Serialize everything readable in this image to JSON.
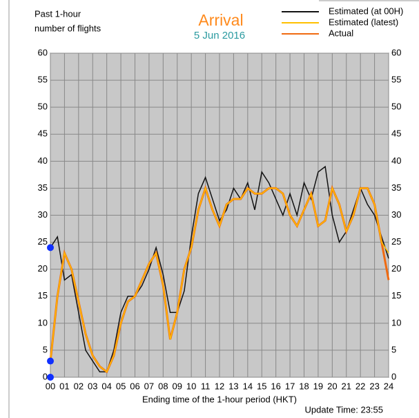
{
  "chart_data": {
    "type": "line",
    "title": "Arrival",
    "subtitle": "5 Jun 2016",
    "y_label": [
      "Past 1-hour",
      "number of flights"
    ],
    "x_label": "Ending time of the 1-hour period (HKT)",
    "update_time": "Update Time: 23:55",
    "xlim": [
      0,
      24
    ],
    "ylim": [
      0,
      60
    ],
    "yticks": [
      0,
      5,
      10,
      15,
      20,
      25,
      30,
      35,
      40,
      45,
      50,
      55,
      60
    ],
    "xticks": [
      {
        "value": 0,
        "label": "00"
      },
      {
        "value": 1,
        "label": "01"
      },
      {
        "value": 2,
        "label": "02"
      },
      {
        "value": 3,
        "label": "03"
      },
      {
        "value": 4,
        "label": "04"
      },
      {
        "value": 5,
        "label": "05"
      },
      {
        "value": 6,
        "label": "06"
      },
      {
        "value": 7,
        "label": "07"
      },
      {
        "value": 8,
        "label": "08"
      },
      {
        "value": 9,
        "label": "09"
      },
      {
        "value": 10,
        "label": "10"
      },
      {
        "value": 11,
        "label": "11"
      },
      {
        "value": 12,
        "label": "12"
      },
      {
        "value": 13,
        "label": "13"
      },
      {
        "value": 14,
        "label": "14"
      },
      {
        "value": 15,
        "label": "15"
      },
      {
        "value": 16,
        "label": "16"
      },
      {
        "value": 17,
        "label": "17"
      },
      {
        "value": 18,
        "label": "18"
      },
      {
        "value": 19,
        "label": "19"
      },
      {
        "value": 20,
        "label": "20"
      },
      {
        "value": 21,
        "label": "21"
      },
      {
        "value": 22,
        "label": "22"
      },
      {
        "value": 23,
        "label": "23"
      },
      {
        "value": 24,
        "label": "24"
      }
    ],
    "grid": true,
    "x": [
      0,
      0.5,
      1,
      1.5,
      2,
      2.5,
      3,
      3.5,
      4,
      4.5,
      5,
      5.5,
      6,
      6.5,
      7,
      7.5,
      8,
      8.5,
      9,
      9.5,
      10,
      10.5,
      11,
      11.5,
      12,
      12.5,
      13,
      13.5,
      14,
      14.5,
      15,
      15.5,
      16,
      16.5,
      17,
      17.5,
      18,
      18.5,
      19,
      19.5,
      20,
      20.5,
      21,
      21.5,
      22,
      22.5,
      23,
      23.5,
      24
    ],
    "series": [
      {
        "name": "Estimated (at 00H)",
        "color": "#111111",
        "width": 1.5,
        "values": [
          24,
          26,
          18,
          19,
          12,
          5,
          3,
          1,
          1,
          5,
          12,
          15,
          15,
          17,
          20,
          24,
          19,
          12,
          12,
          16,
          26,
          34,
          37,
          33,
          29,
          31,
          35,
          33,
          36,
          31,
          38,
          36,
          33,
          30,
          34,
          30,
          36,
          33,
          38,
          39,
          30,
          25,
          27,
          31,
          35,
          32,
          30,
          26,
          22
        ]
      },
      {
        "name": "Estimated (latest)",
        "color": "#ffc000",
        "width": 1.5,
        "values": [
          3,
          15,
          23,
          20,
          14,
          8,
          4,
          2,
          1,
          4,
          10,
          14,
          15,
          18,
          21,
          23,
          17,
          7,
          12,
          20,
          24,
          31,
          35,
          31,
          28,
          32,
          33,
          33,
          35,
          34,
          34,
          35,
          35,
          34,
          30,
          28,
          31,
          34,
          28,
          29,
          35,
          32,
          27,
          30,
          35,
          35,
          32,
          25,
          23
        ]
      },
      {
        "name": "Actual",
        "color": "#f06a10",
        "width": 3,
        "values": [
          3,
          15,
          23,
          20,
          14,
          8,
          4,
          2,
          1,
          4,
          10,
          14,
          15,
          18,
          21,
          23,
          17,
          7,
          12,
          20,
          24,
          31,
          35,
          31,
          28,
          32,
          33,
          33,
          35,
          34,
          34,
          35,
          35,
          34,
          30,
          28,
          31,
          34,
          28,
          29,
          35,
          32,
          27,
          30,
          35,
          35,
          32,
          25,
          18
        ]
      }
    ],
    "start_points": {
      "color": "#1030ff",
      "x": [
        0,
        0,
        0
      ],
      "values": [
        24,
        3,
        0
      ]
    }
  }
}
